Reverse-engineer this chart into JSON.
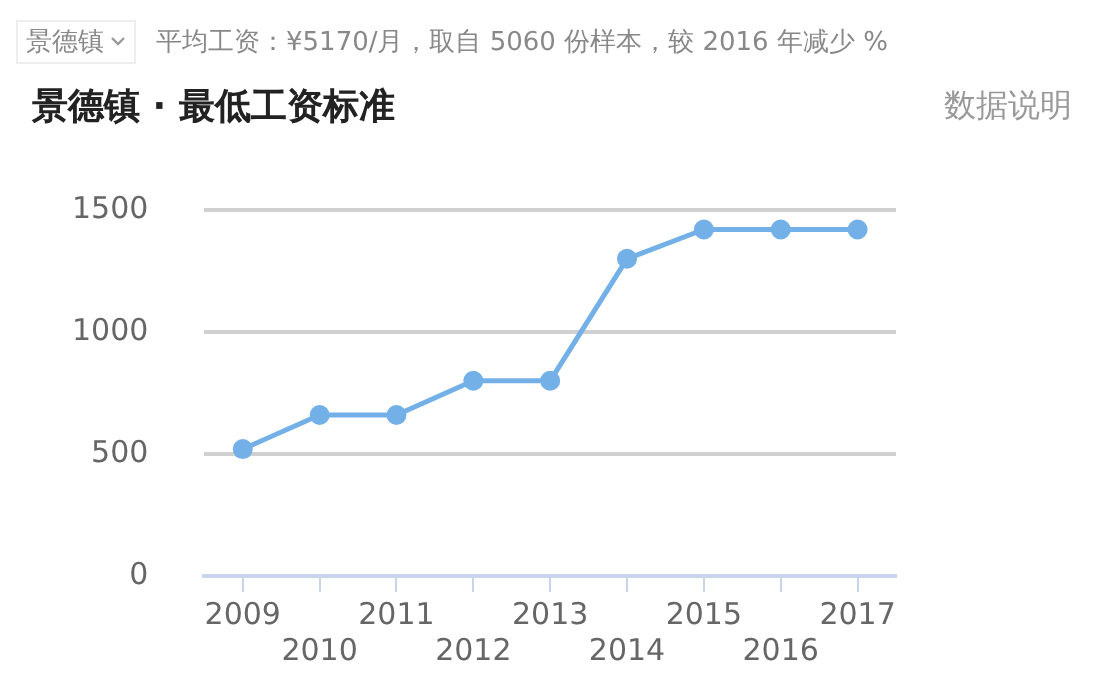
{
  "chart_data": {
    "type": "line",
    "title": "景德镇 · 最低工资标准",
    "subtitle": "平均工资：¥5170/月，取自 5060 份样本，较 2016 年减少 %",
    "annotations": [
      "景德镇",
      "数据说明"
    ],
    "categories": [
      "2009",
      "2010",
      "2011",
      "2012",
      "2013",
      "2014",
      "2015",
      "2016",
      "2017"
    ],
    "series": [
      {
        "color": "#74b0e8",
        "values": [
          520,
          660,
          660,
          800,
          800,
          1300,
          1420,
          1420,
          1420
        ]
      }
    ],
    "ylim": [
      0,
      1500
    ],
    "yticks": [
      0,
      500,
      1000,
      1500
    ],
    "grid": "y",
    "legend": false,
    "marker": "circle",
    "line_style": "solid"
  }
}
